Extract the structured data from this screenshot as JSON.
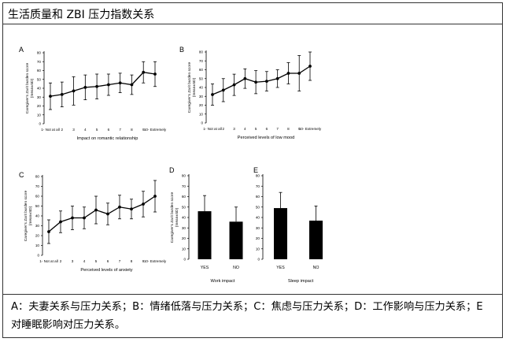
{
  "title": "生活质量和 ZBI 压力指数关系",
  "caption": "A：夫妻关系与压力关系；B：情绪低落与压力关系；C：焦虑与压力关系；D：工作影响与压力关系；E 对睡眠影响对压力关系。",
  "chart_data": [
    {
      "panel": "A",
      "type": "line",
      "xlabel": "Impact on romantic relationship",
      "ylabel": "Caregiver's Zarit burden score (mean±SD)",
      "x_tick_labels": [
        "1- Not at all",
        "2",
        "3",
        "4",
        "5",
        "6",
        "7",
        "8",
        "9",
        "10- Extremely"
      ],
      "x": [
        1,
        2,
        3,
        4,
        5,
        6,
        7,
        8,
        9,
        10
      ],
      "values": [
        31,
        33,
        37,
        41,
        42,
        44,
        46,
        44,
        58,
        56
      ],
      "errors": [
        15,
        14,
        16,
        14,
        14,
        12,
        11,
        11,
        12,
        14
      ],
      "ylim": [
        0,
        80
      ],
      "yticks": [
        0,
        10,
        20,
        30,
        40,
        50,
        60,
        70,
        80
      ]
    },
    {
      "panel": "B",
      "type": "line",
      "xlabel": "Perceived levels of low mood",
      "ylabel": "Caregiver's Zarit burden score (mean±SD)",
      "x_tick_labels": [
        "1- Not at all",
        "2",
        "3",
        "4",
        "5",
        "6",
        "7",
        "8",
        "9",
        "10- Extremely"
      ],
      "x": [
        1,
        2,
        3,
        4,
        5,
        6,
        7,
        8,
        9,
        10
      ],
      "values": [
        32,
        37,
        43,
        50,
        46,
        47,
        50,
        56,
        56,
        64
      ],
      "errors": [
        12,
        13,
        12,
        11,
        13,
        11,
        10,
        12,
        20,
        16
      ],
      "ylim": [
        0,
        80
      ],
      "yticks": [
        0,
        10,
        20,
        30,
        40,
        50,
        60,
        70,
        80
      ]
    },
    {
      "panel": "C",
      "type": "line",
      "xlabel": "Perceived levels of anxiety",
      "ylabel": "Caregiver's Zarit burden score (mean±SD)",
      "x_tick_labels": [
        "1- Not at all",
        "2",
        "3",
        "4",
        "5",
        "6",
        "7",
        "8",
        "9",
        "10- Extremely"
      ],
      "x": [
        1,
        2,
        3,
        4,
        5,
        6,
        7,
        8,
        9,
        10
      ],
      "values": [
        24,
        34,
        38,
        38,
        46,
        42,
        49,
        47,
        52,
        60
      ],
      "errors": [
        12,
        11,
        12,
        11,
        14,
        11,
        12,
        10,
        13,
        16
      ],
      "ylim": [
        0,
        80
      ],
      "yticks": [
        0,
        10,
        20,
        30,
        40,
        50,
        60,
        70,
        80
      ]
    },
    {
      "panel": "D",
      "type": "bar",
      "categories": [
        "YES",
        "NO"
      ],
      "values": [
        46,
        36
      ],
      "errors": [
        15,
        14
      ],
      "xlabel": "Work impact",
      "ylabel": "Caregiver's Zarit burden score (mean±SD)",
      "ylim": [
        0,
        80
      ],
      "yticks": [
        0,
        10,
        20,
        30,
        40,
        50,
        60,
        70,
        80
      ]
    },
    {
      "panel": "E",
      "type": "bar",
      "categories": [
        "YES",
        "NO"
      ],
      "values": [
        49,
        37
      ],
      "errors": [
        15,
        14
      ],
      "xlabel": "Sleep impact",
      "ylabel": "",
      "ylim": [
        0,
        80
      ],
      "yticks": [
        0,
        10,
        20,
        30,
        40,
        50,
        60,
        70,
        80
      ]
    }
  ]
}
